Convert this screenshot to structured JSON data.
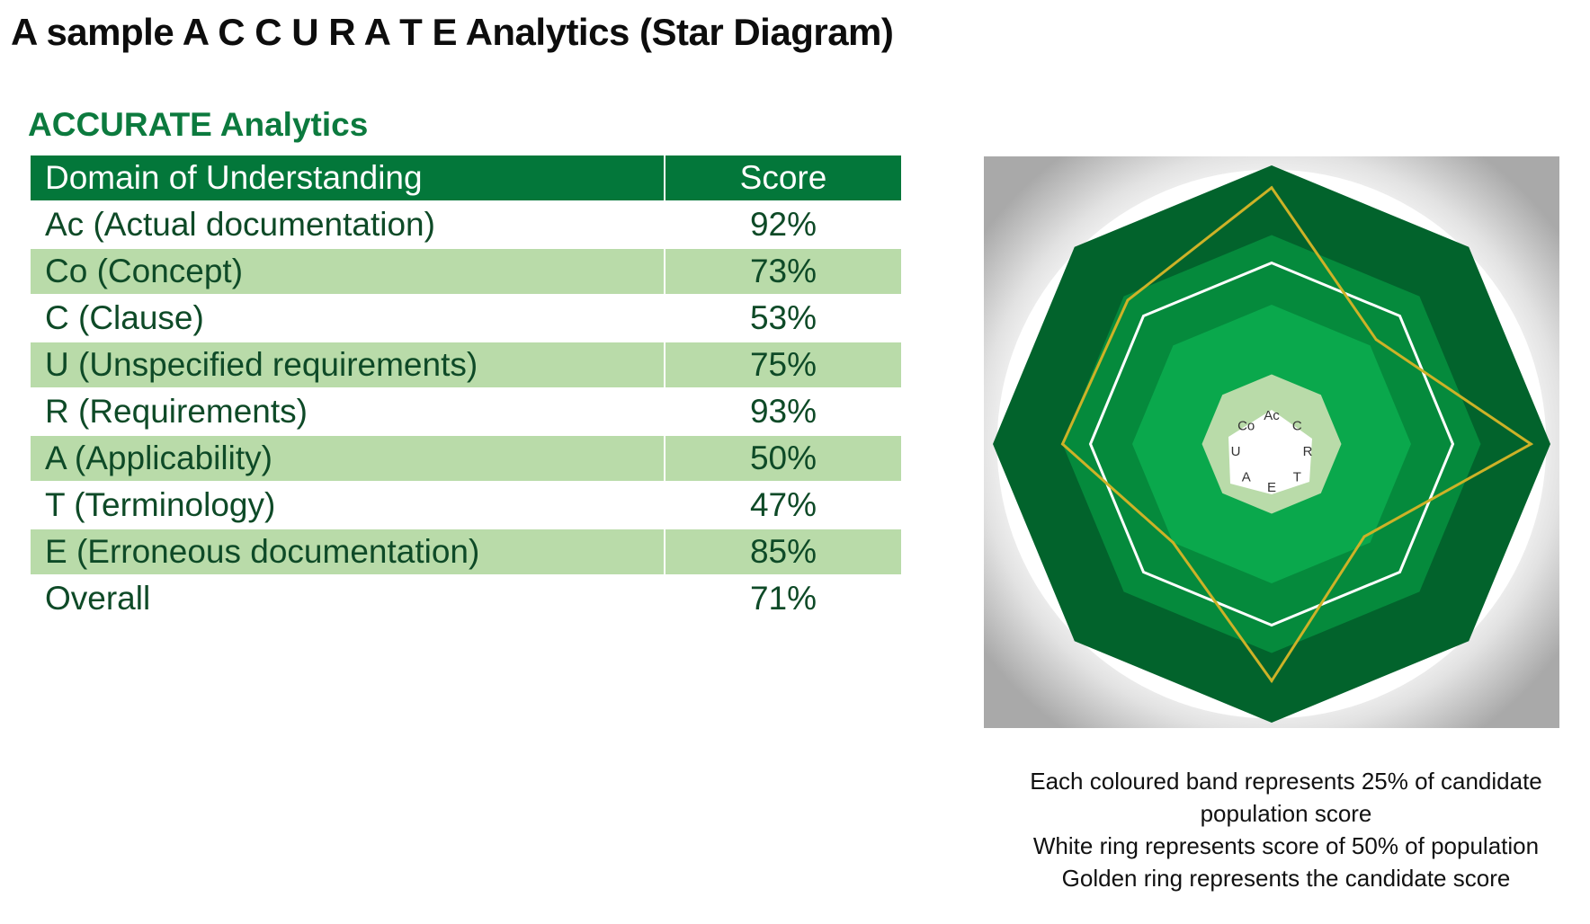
{
  "page": {
    "title": "A sample A C C U R A T E Analytics (Star Diagram)"
  },
  "table": {
    "title": "ACCURATE Analytics",
    "headers": [
      "Domain of Understanding",
      "Score"
    ],
    "rows": [
      {
        "domain": "Ac (Actual documentation)",
        "score": "92%"
      },
      {
        "domain": "Co (Concept)",
        "score": "73%"
      },
      {
        "domain": "C (Clause)",
        "score": "53%"
      },
      {
        "domain": "U (Unspecified requirements)",
        "score": "75%"
      },
      {
        "domain": "R (Requirements)",
        "score": "93%"
      },
      {
        "domain": "A (Applicability)",
        "score": "50%"
      },
      {
        "domain": "T (Terminology)",
        "score": "47%"
      },
      {
        "domain": "E (Erroneous documentation)",
        "score": "85%"
      },
      {
        "domain": "Overall",
        "score": "71%"
      }
    ]
  },
  "chart_data": {
    "type": "radar",
    "axes": [
      "Ac",
      "C",
      "R",
      "T",
      "E",
      "A",
      "U",
      "Co"
    ],
    "series": [
      {
        "values": [
          92,
          53,
          93,
          47,
          85,
          50,
          75,
          73
        ],
        "color": "#cdb227"
      }
    ],
    "bands": [
      25,
      50,
      75,
      100
    ],
    "band_colors": [
      "#b9dba9",
      "#0aa84c",
      "#058a3c",
      "#02632c"
    ],
    "white_ring": 50,
    "rlim": [
      0,
      100
    ]
  },
  "caption": {
    "lines": [
      "Each coloured band represents 25% of candidate",
      "population score",
      "White ring represents score of 50% of population",
      "Golden ring represents the candidate score"
    ]
  }
}
